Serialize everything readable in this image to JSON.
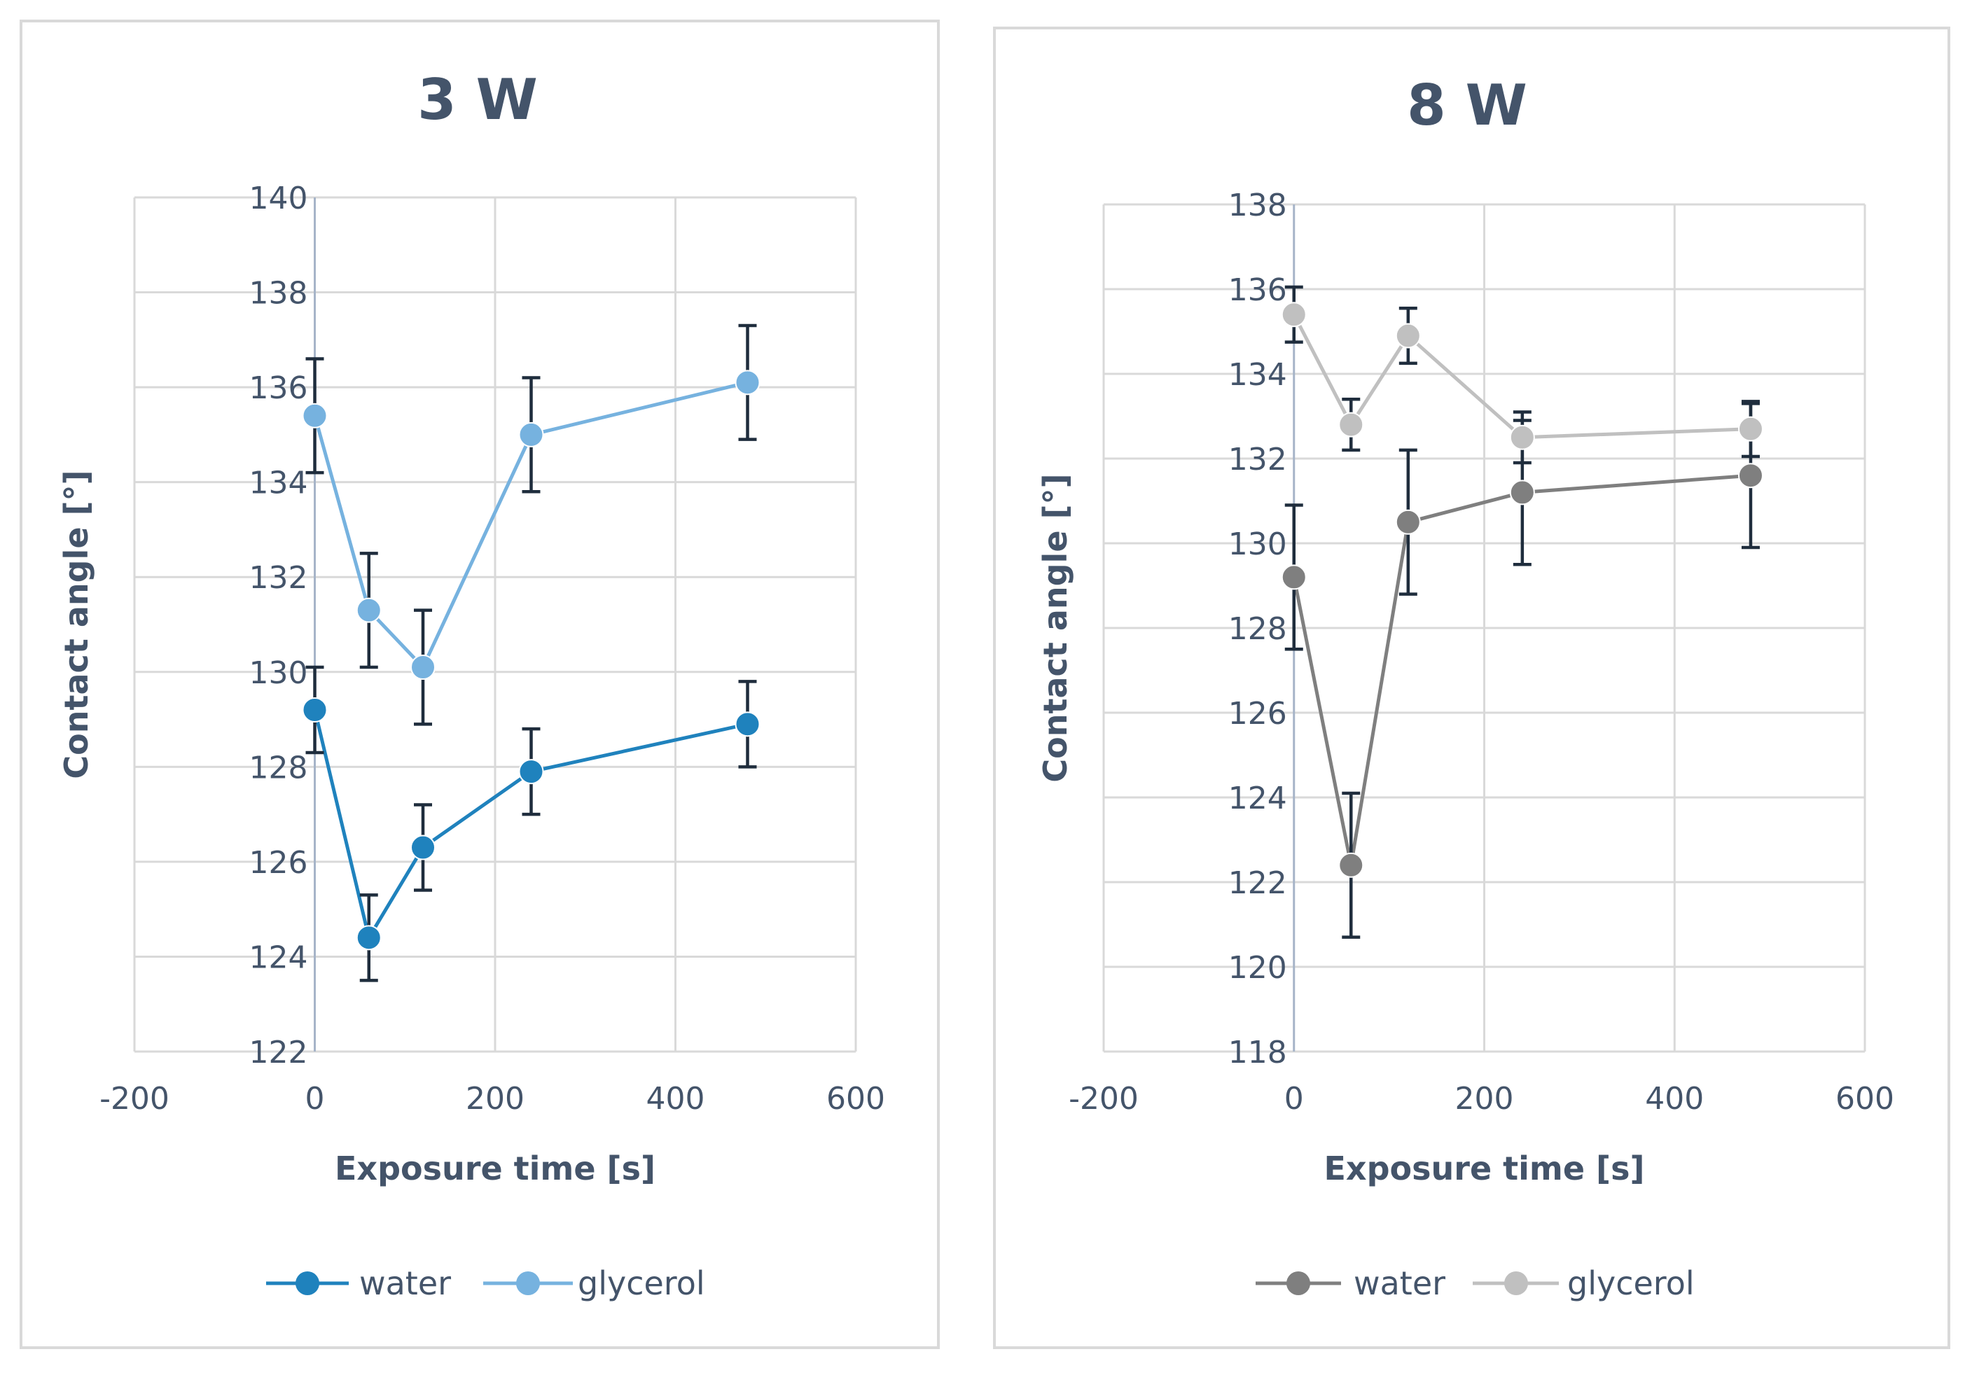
{
  "chart_data": [
    {
      "type": "scatter",
      "title": "3 W",
      "xlabel": "Exposure time [s]",
      "ylabel": "Contact angle [°]",
      "xlim": [
        -200,
        600
      ],
      "ylim": [
        122,
        140
      ],
      "x_ticks": [
        -200,
        0,
        200,
        400,
        600
      ],
      "y_ticks": [
        122,
        124,
        126,
        128,
        130,
        132,
        134,
        136,
        138,
        140
      ],
      "grid": true,
      "legend_position": "bottom",
      "series": [
        {
          "name": "water",
          "color": "#1f82bd",
          "x": [
            0,
            60,
            120,
            240,
            480
          ],
          "y": [
            129.2,
            124.4,
            126.3,
            127.9,
            128.9
          ],
          "error": [
            0.9,
            0.9,
            0.9,
            0.9,
            0.9
          ]
        },
        {
          "name": "glycerol",
          "color": "#76b2df",
          "x": [
            0,
            60,
            120,
            240,
            480
          ],
          "y": [
            135.4,
            131.3,
            130.1,
            135.0,
            136.1
          ],
          "error": [
            1.2,
            1.2,
            1.2,
            1.2,
            1.2
          ]
        }
      ]
    },
    {
      "type": "scatter",
      "title": "8 W",
      "xlabel": "Exposure time [s]",
      "ylabel": "Contact angle [°]",
      "xlim": [
        -200,
        600
      ],
      "ylim": [
        118,
        138
      ],
      "x_ticks": [
        -200,
        0,
        200,
        400,
        600
      ],
      "y_ticks": [
        118,
        120,
        122,
        124,
        126,
        128,
        130,
        132,
        134,
        136,
        138
      ],
      "grid": true,
      "legend_position": "bottom",
      "series": [
        {
          "name": "water",
          "color": "#7f7f7f",
          "x": [
            0,
            60,
            120,
            240,
            480
          ],
          "y": [
            129.2,
            122.4,
            130.5,
            131.2,
            131.6
          ],
          "error": [
            1.7,
            1.7,
            1.7,
            1.7,
            1.7
          ]
        },
        {
          "name": "glycerol",
          "color": "#c0c0c0",
          "x": [
            0,
            60,
            120,
            240,
            480
          ],
          "y": [
            135.4,
            132.8,
            134.9,
            132.5,
            132.7
          ],
          "error": [
            0.65,
            0.6,
            0.65,
            0.6,
            0.65
          ]
        }
      ]
    }
  ]
}
